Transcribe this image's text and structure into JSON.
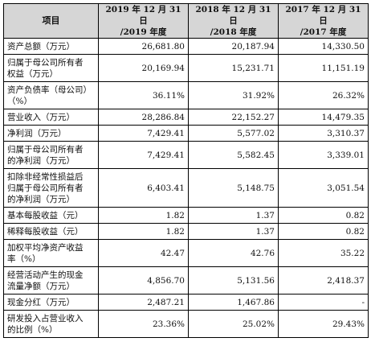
{
  "headers": {
    "item": "项目",
    "y2019": [
      "2019 年 12 月 31 日",
      "/2019 年度"
    ],
    "y2018": [
      "2018 年 12 月 31 日",
      "/2018 年度"
    ],
    "y2017": [
      "2017 年 12 月 31 日",
      "/2017 年度"
    ]
  },
  "rows": [
    {
      "label": [
        "资产总额（万元）"
      ],
      "v2019": "26,681.80",
      "v2018": "20,187.94",
      "v2017": "14,330.50"
    },
    {
      "label": [
        "归属于母公司所有者",
        "权益（万元）"
      ],
      "v2019": "20,169.94",
      "v2018": "15,231.71",
      "v2017": "11,151.19"
    },
    {
      "label": [
        "资产负债率（母公司）",
        "（%）"
      ],
      "v2019": "36.11%",
      "v2018": "31.92%",
      "v2017": "26.32%"
    },
    {
      "label": [
        "营业收入（万元）"
      ],
      "v2019": "28,286.84",
      "v2018": "22,152.27",
      "v2017": "14,479.35"
    },
    {
      "label": [
        "净利润（万元）"
      ],
      "v2019": "7,429.41",
      "v2018": "5,577.02",
      "v2017": "3,310.37"
    },
    {
      "label": [
        "归属于母公司所有者",
        "的净利润（万元）"
      ],
      "v2019": "7,429.41",
      "v2018": "5,582.45",
      "v2017": "3,339.01"
    },
    {
      "label": [
        "扣除非经常性损益后",
        "归属于母公司所有者",
        "的净利润（万元）"
      ],
      "v2019": "6,403.41",
      "v2018": "5,148.75",
      "v2017": "3,051.54"
    },
    {
      "label": [
        "基本每股收益（元）"
      ],
      "v2019": "1.82",
      "v2018": "1.37",
      "v2017": "0.82"
    },
    {
      "label": [
        "稀释每股收益（元）"
      ],
      "v2019": "1.82",
      "v2018": "1.37",
      "v2017": "0.82"
    },
    {
      "label": [
        "加权平均净资产收益",
        "率（%）"
      ],
      "v2019": "42.47",
      "v2018": "42.76",
      "v2017": "35.22"
    },
    {
      "label": [
        "经营活动产生的现金",
        "流量净额（万元）"
      ],
      "v2019": "4,856.70",
      "v2018": "5,131.56",
      "v2017": "2,418.37"
    },
    {
      "label": [
        "现金分红（万元）"
      ],
      "v2019": "2,487.21",
      "v2018": "1,467.86",
      "v2017": "-"
    },
    {
      "label": [
        "研发投入占营业收入",
        "的比例（%）"
      ],
      "v2019": "23.36%",
      "v2018": "25.02%",
      "v2017": "29.43%"
    }
  ]
}
